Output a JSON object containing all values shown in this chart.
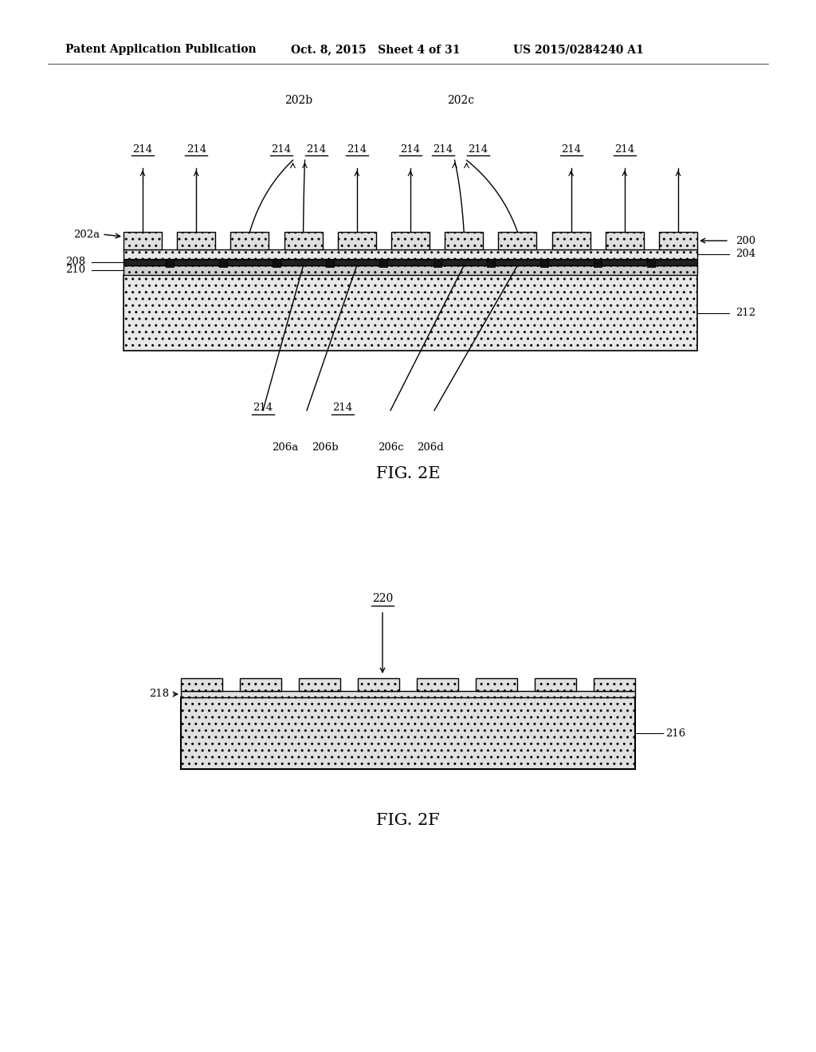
{
  "bg_color": "#ffffff",
  "header_left": "Patent Application Publication",
  "header_mid": "Oct. 8, 2015   Sheet 4 of 31",
  "header_right": "US 2015/0284240 A1",
  "fig2e_title": "FIG. 2E",
  "fig2f_title": "FIG. 2F"
}
